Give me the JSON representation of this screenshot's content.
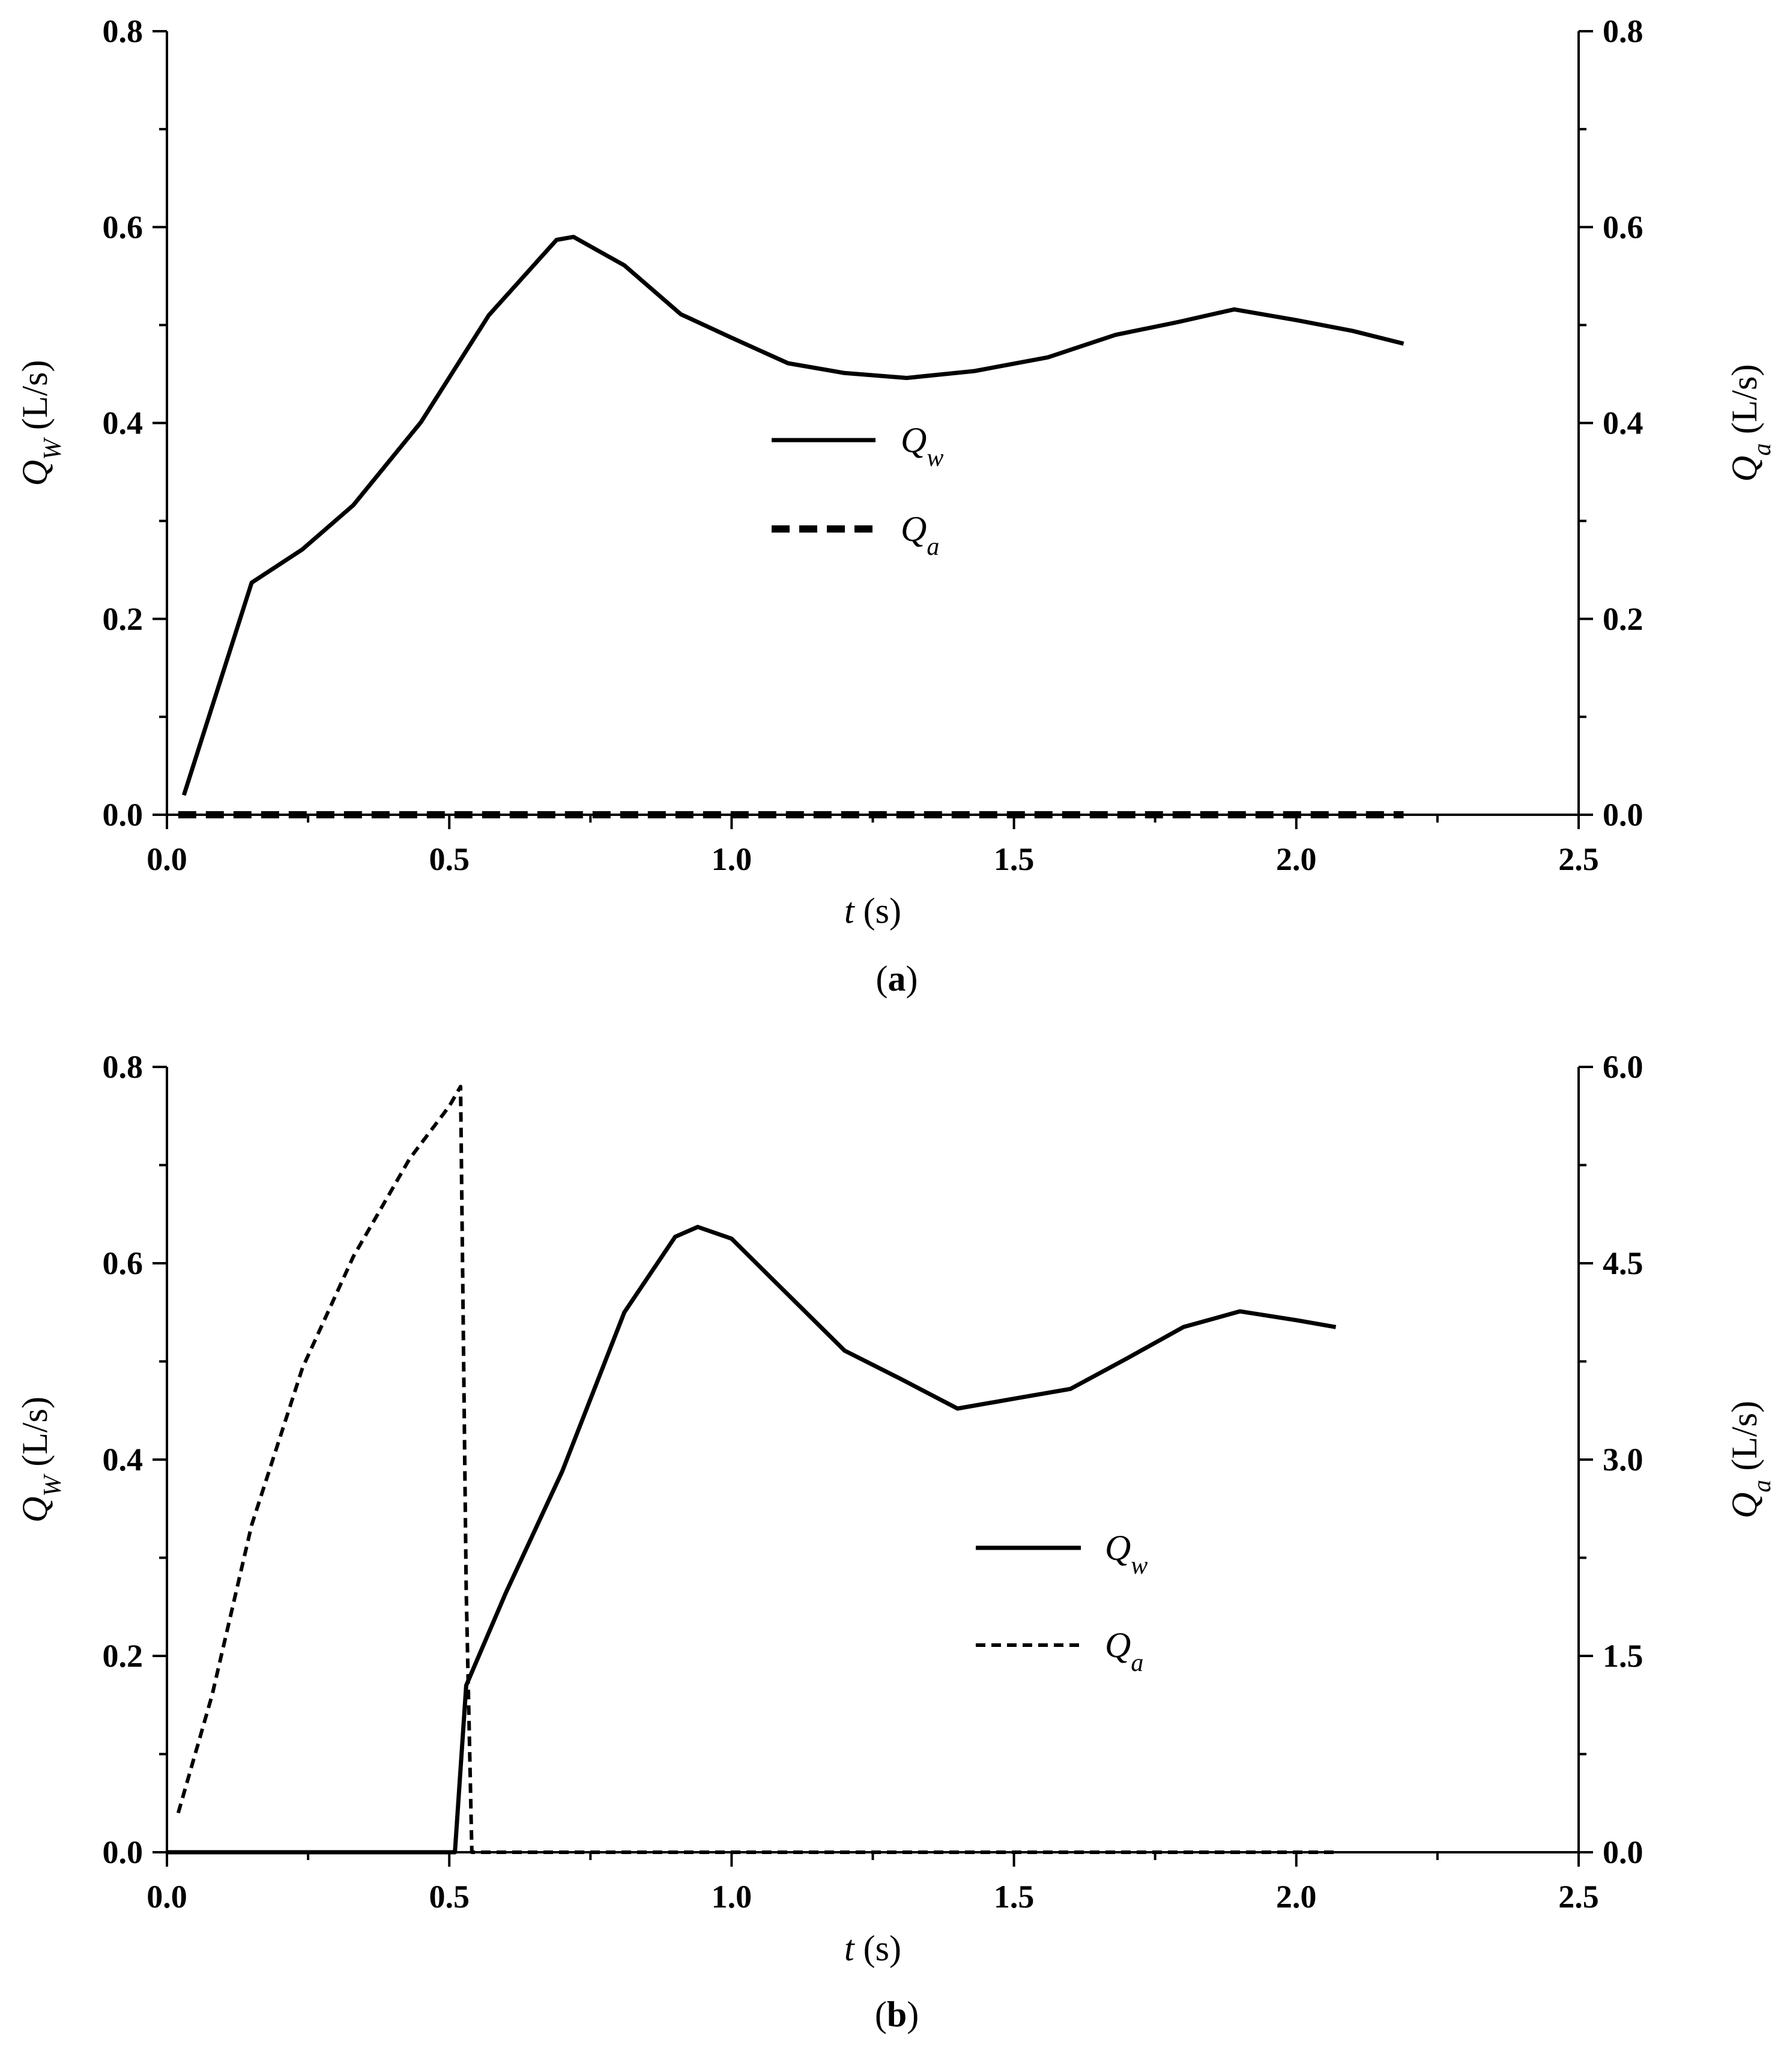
{
  "chart_data": [
    {
      "type": "line",
      "panel": "a",
      "caption": "(a)",
      "xlabel": "t (s)",
      "ylabel_left": "Q_W (L/s)",
      "ylabel_right": "Q_a (L/s)",
      "xlim": [
        0,
        2.5
      ],
      "ylim_left": [
        0,
        0.8
      ],
      "ylim_right": [
        0,
        0.8
      ],
      "xticks": [
        "0.0",
        "0.5",
        "1.0",
        "1.5",
        "2.0",
        "2.5"
      ],
      "yticks_left": [
        "0.0",
        "0.2",
        "0.4",
        "0.6",
        "0.8"
      ],
      "yticks_right": [
        "0.0",
        "0.2",
        "0.4",
        "0.6",
        "0.8"
      ],
      "grid": false,
      "legend_position": "center",
      "series": [
        {
          "name": "Q_w",
          "axis": "left",
          "style": "solid",
          "x": [
            0.03,
            0.15,
            0.24,
            0.33,
            0.45,
            0.57,
            0.69,
            0.72,
            0.81,
            0.91,
            1.0,
            1.1,
            1.2,
            1.31,
            1.43,
            1.56,
            1.68,
            1.79,
            1.89,
            2.0,
            2.1,
            2.19
          ],
          "y": [
            0.02,
            0.237,
            0.271,
            0.316,
            0.401,
            0.51,
            0.587,
            0.59,
            0.561,
            0.511,
            0.487,
            0.461,
            0.451,
            0.446,
            0.453,
            0.467,
            0.49,
            0.503,
            0.516,
            0.505,
            0.494,
            0.481
          ]
        },
        {
          "name": "Q_a",
          "axis": "right",
          "style": "dashed",
          "x": [
            0.02,
            2.19
          ],
          "y": [
            0.0,
            0.0
          ]
        }
      ]
    },
    {
      "type": "line",
      "panel": "b",
      "caption": "(b)",
      "xlabel": "t (s)",
      "ylabel_left": "Q_W (L/s)",
      "ylabel_right": "Q_a (L/s)",
      "xlim": [
        0,
        2.5
      ],
      "ylim_left": [
        0,
        0.8
      ],
      "ylim_right": [
        0,
        6.0
      ],
      "xticks": [
        "0.0",
        "0.5",
        "1.0",
        "1.5",
        "2.0",
        "2.5"
      ],
      "yticks_left": [
        "0.0",
        "0.2",
        "0.4",
        "0.6",
        "0.8"
      ],
      "yticks_right": [
        "0.0",
        "1.5",
        "3.0",
        "4.5",
        "6.0"
      ],
      "grid": false,
      "legend_position": "center-right",
      "series": [
        {
          "name": "Q_w",
          "axis": "left",
          "style": "solid",
          "x": [
            0.0,
            0.51,
            0.53,
            0.6,
            0.7,
            0.81,
            0.9,
            0.94,
            1.0,
            1.1,
            1.2,
            1.3,
            1.4,
            1.5,
            1.6,
            1.7,
            1.8,
            1.9,
            2.0,
            2.07
          ],
          "y": [
            0.0,
            0.0,
            0.17,
            0.264,
            0.388,
            0.55,
            0.627,
            0.637,
            0.625,
            0.568,
            0.511,
            0.482,
            0.452,
            0.462,
            0.472,
            0.503,
            0.535,
            0.551,
            0.542,
            0.535
          ]
        },
        {
          "name": "Q_a",
          "axis": "right",
          "style": "dotted",
          "x": [
            0.02,
            0.08,
            0.15,
            0.24,
            0.33,
            0.43,
            0.5,
            0.52,
            0.53,
            0.54,
            0.6,
            1.0,
            1.5,
            2.07
          ],
          "y": [
            0.3,
            1.2,
            2.5,
            3.7,
            4.55,
            5.3,
            5.7,
            5.85,
            2.0,
            0.0,
            0.0,
            0.0,
            0.0,
            0.0
          ]
        }
      ]
    }
  ]
}
